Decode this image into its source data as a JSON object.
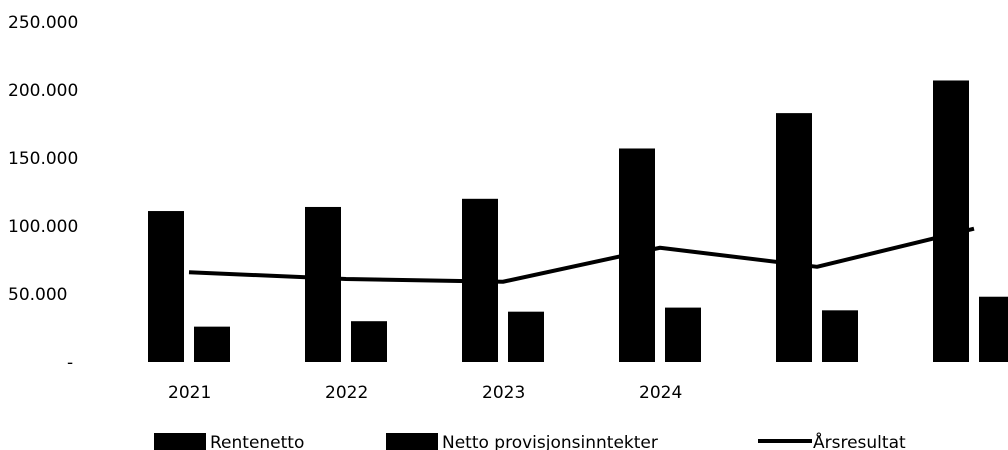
{
  "chart_data": {
    "type": "bar",
    "categories": [
      "2021",
      "2022",
      "2023",
      "2024",
      "",
      ""
    ],
    "y_tick_labels": [
      "-",
      "50.000",
      "100.000",
      "150.000",
      "200.000",
      "250.000"
    ],
    "ylim": [
      0,
      250000
    ],
    "grid": false,
    "legend_position": "bottom",
    "series": [
      {
        "name": "Rentenetto",
        "kind": "bar",
        "values": [
          111000,
          114000,
          120000,
          157000,
          183000,
          207000
        ]
      },
      {
        "name": "Netto provisjonsinntekter",
        "kind": "bar",
        "values": [
          26000,
          30000,
          37000,
          40000,
          38000,
          48000
        ]
      },
      {
        "name": "Årsresultat",
        "kind": "line",
        "values": [
          66000,
          61000,
          59000,
          84000,
          70000,
          98000
        ]
      }
    ],
    "colors": {
      "bars": "#000000",
      "line": "#000000"
    }
  }
}
